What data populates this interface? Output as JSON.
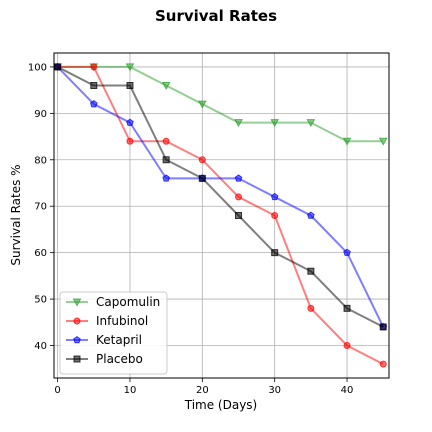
{
  "chart_data": {
    "type": "line",
    "title": "Survival Rates",
    "xlabel": "Time (Days)",
    "ylabel": "Survival Rates %",
    "x": [
      0,
      5,
      10,
      15,
      20,
      25,
      30,
      35,
      40,
      45
    ],
    "xlim": [
      -0.5,
      45.8
    ],
    "ylim": [
      33,
      103
    ],
    "xticks": [
      0,
      10,
      20,
      30,
      40
    ],
    "yticks": [
      40,
      50,
      60,
      70,
      80,
      90,
      100
    ],
    "grid": true,
    "legend_position": "lower-left",
    "series": [
      {
        "name": "Capomulin",
        "color": "#2ca02c",
        "marker": "triangle-down",
        "values": [
          100,
          100,
          100,
          96,
          92,
          88,
          88,
          88,
          84,
          84
        ]
      },
      {
        "name": "Infubinol",
        "color": "#ff0000",
        "marker": "circle",
        "values": [
          100,
          100,
          84,
          84,
          80,
          72,
          68,
          48,
          40,
          36
        ]
      },
      {
        "name": "Ketapril",
        "color": "#0000ff",
        "marker": "pentagon",
        "values": [
          100,
          92,
          88,
          76,
          76,
          76,
          72,
          68,
          60,
          44
        ]
      },
      {
        "name": "Placebo",
        "color": "#000000",
        "marker": "square",
        "values": [
          100,
          96,
          96,
          80,
          76,
          68,
          60,
          56,
          48,
          44
        ]
      }
    ]
  }
}
